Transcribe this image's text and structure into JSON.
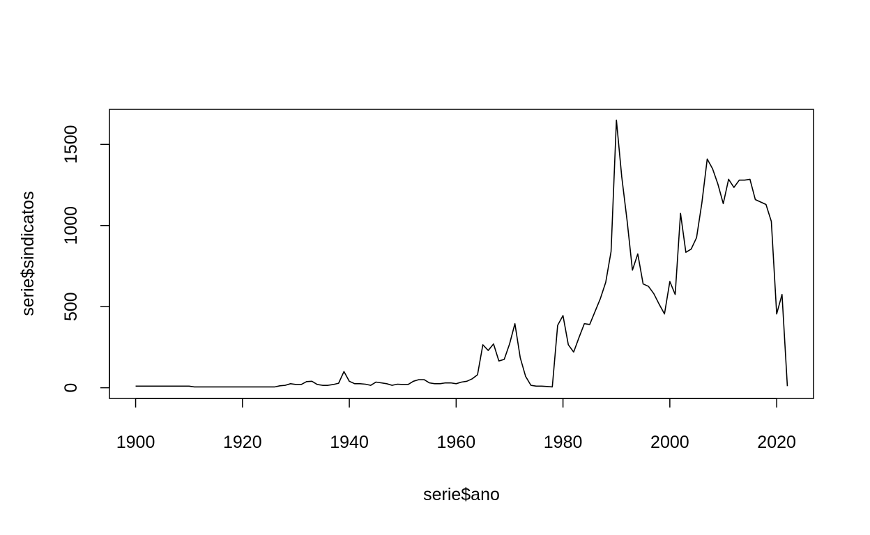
{
  "chart_data": {
    "type": "line",
    "title": "",
    "xlabel": "serie$ano",
    "ylabel": "serie$sindicatos",
    "xlim": [
      1895.1,
      2026.9
    ],
    "ylim": [
      -66,
      1716
    ],
    "xticks": [
      1900,
      1920,
      1940,
      1960,
      1980,
      2000,
      2020
    ],
    "yticks": [
      0,
      500,
      1000,
      1500
    ],
    "series": [
      {
        "name": "sindicatos",
        "x": [
          1900,
          1901,
          1902,
          1903,
          1904,
          1905,
          1906,
          1907,
          1908,
          1909,
          1910,
          1911,
          1912,
          1913,
          1914,
          1915,
          1916,
          1917,
          1918,
          1919,
          1920,
          1921,
          1922,
          1923,
          1924,
          1925,
          1926,
          1927,
          1928,
          1929,
          1930,
          1931,
          1932,
          1933,
          1934,
          1935,
          1936,
          1937,
          1938,
          1939,
          1940,
          1941,
          1942,
          1943,
          1944,
          1945,
          1946,
          1947,
          1948,
          1949,
          1950,
          1951,
          1952,
          1953,
          1954,
          1955,
          1956,
          1957,
          1958,
          1959,
          1960,
          1961,
          1962,
          1963,
          1964,
          1965,
          1966,
          1967,
          1968,
          1969,
          1970,
          1971,
          1972,
          1973,
          1974,
          1975,
          1976,
          1977,
          1978,
          1979,
          1980,
          1981,
          1982,
          1983,
          1984,
          1985,
          1986,
          1987,
          1988,
          1989,
          1990,
          1991,
          1992,
          1993,
          1994,
          1995,
          1996,
          1997,
          1998,
          1999,
          2000,
          2001,
          2002,
          2003,
          2004,
          2005,
          2006,
          2007,
          2008,
          2009,
          2010,
          2011,
          2012,
          2013,
          2014,
          2015,
          2016,
          2017,
          2018,
          2019,
          2020,
          2021,
          2022
        ],
        "values": [
          10,
          10,
          10,
          10,
          10,
          10,
          10,
          10,
          10,
          10,
          10,
          5,
          5,
          5,
          5,
          5,
          5,
          5,
          5,
          5,
          5,
          5,
          5,
          5,
          5,
          5,
          5,
          12,
          15,
          25,
          20,
          20,
          38,
          40,
          20,
          15,
          15,
          20,
          28,
          100,
          40,
          25,
          25,
          22,
          15,
          35,
          30,
          25,
          15,
          22,
          20,
          20,
          40,
          50,
          50,
          30,
          25,
          25,
          30,
          30,
          25,
          35,
          40,
          55,
          80,
          265,
          230,
          270,
          165,
          175,
          270,
          395,
          185,
          70,
          15,
          10,
          10,
          8,
          5,
          385,
          445,
          265,
          220,
          310,
          395,
          390,
          470,
          550,
          650,
          840,
          1650,
          1300,
          1030,
          725,
          825,
          640,
          625,
          580,
          515,
          455,
          655,
          575,
          1075,
          835,
          855,
          925,
          1140,
          1410,
          1350,
          1255,
          1135,
          1285,
          1235,
          1280,
          1280,
          1285,
          1160,
          1145,
          1130,
          1025,
          455,
          575,
          10
        ]
      }
    ]
  }
}
